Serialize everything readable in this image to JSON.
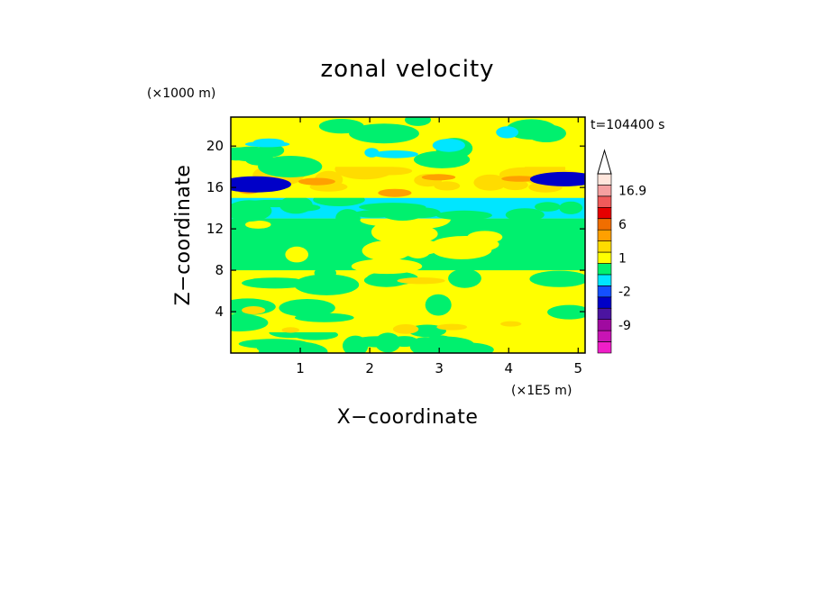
{
  "chart_data": {
    "type": "heatmap",
    "title": "zonal velocity",
    "time_label": "t=104400 s",
    "xlabel": "X−coordinate",
    "ylabel": "Z−coordinate",
    "x_multiplier": "(×1E5 m)",
    "y_multiplier": "(×1000 m)",
    "xlim": [
      0,
      5.1
    ],
    "ylim": [
      0,
      22.8
    ],
    "x_ticks": [
      1,
      2,
      3,
      4,
      5
    ],
    "y_ticks": [
      4,
      8,
      12,
      16,
      20
    ],
    "colorbar": {
      "levels": [
        {
          "label": "",
          "color": "#f01ec8"
        },
        {
          "label": "",
          "color": "#c814b4"
        },
        {
          "label": "-9",
          "color": "#a00aa0"
        },
        {
          "label": "",
          "color": "#4b14a0"
        },
        {
          "label": "",
          "color": "#0000c8"
        },
        {
          "label": "-2",
          "color": "#1450ff"
        },
        {
          "label": "",
          "color": "#00e6ff"
        },
        {
          "label": "",
          "color": "#00f06e"
        },
        {
          "label": "1",
          "color": "#ffff00"
        },
        {
          "label": "",
          "color": "#ffdc00"
        },
        {
          "label": "",
          "color": "#ffa000"
        },
        {
          "label": "6",
          "color": "#f06e00"
        },
        {
          "label": "",
          "color": "#e60000"
        },
        {
          "label": "",
          "color": "#f05a5a"
        },
        {
          "label": "16.9",
          "color": "#f5a0a0"
        },
        {
          "label": "",
          "color": "#ffe6dc"
        }
      ]
    },
    "field_bands": [
      {
        "z_range": [
          0,
          2
        ],
        "dominant": "#ffff00",
        "secondary": "#00f06e"
      },
      {
        "z_range": [
          2,
          8
        ],
        "dominant": "#ffff00",
        "secondary": "#00f06e",
        "accent": "#ffdc00"
      },
      {
        "z_range": [
          8,
          13
        ],
        "dominant": "#00f06e",
        "secondary": "#ffff00"
      },
      {
        "z_range": [
          13,
          15
        ],
        "dominant": "#00e6ff",
        "secondary": "#00f06e"
      },
      {
        "z_range": [
          15,
          18
        ],
        "dominant": "#ffff00",
        "secondary": "#ffdc00",
        "accent": "#ffa000",
        "jet": "#0000c8"
      },
      {
        "z_range": [
          18,
          22.8
        ],
        "dominant": "#ffff00",
        "secondary": "#00f06e",
        "accent": "#00e6ff"
      }
    ]
  }
}
